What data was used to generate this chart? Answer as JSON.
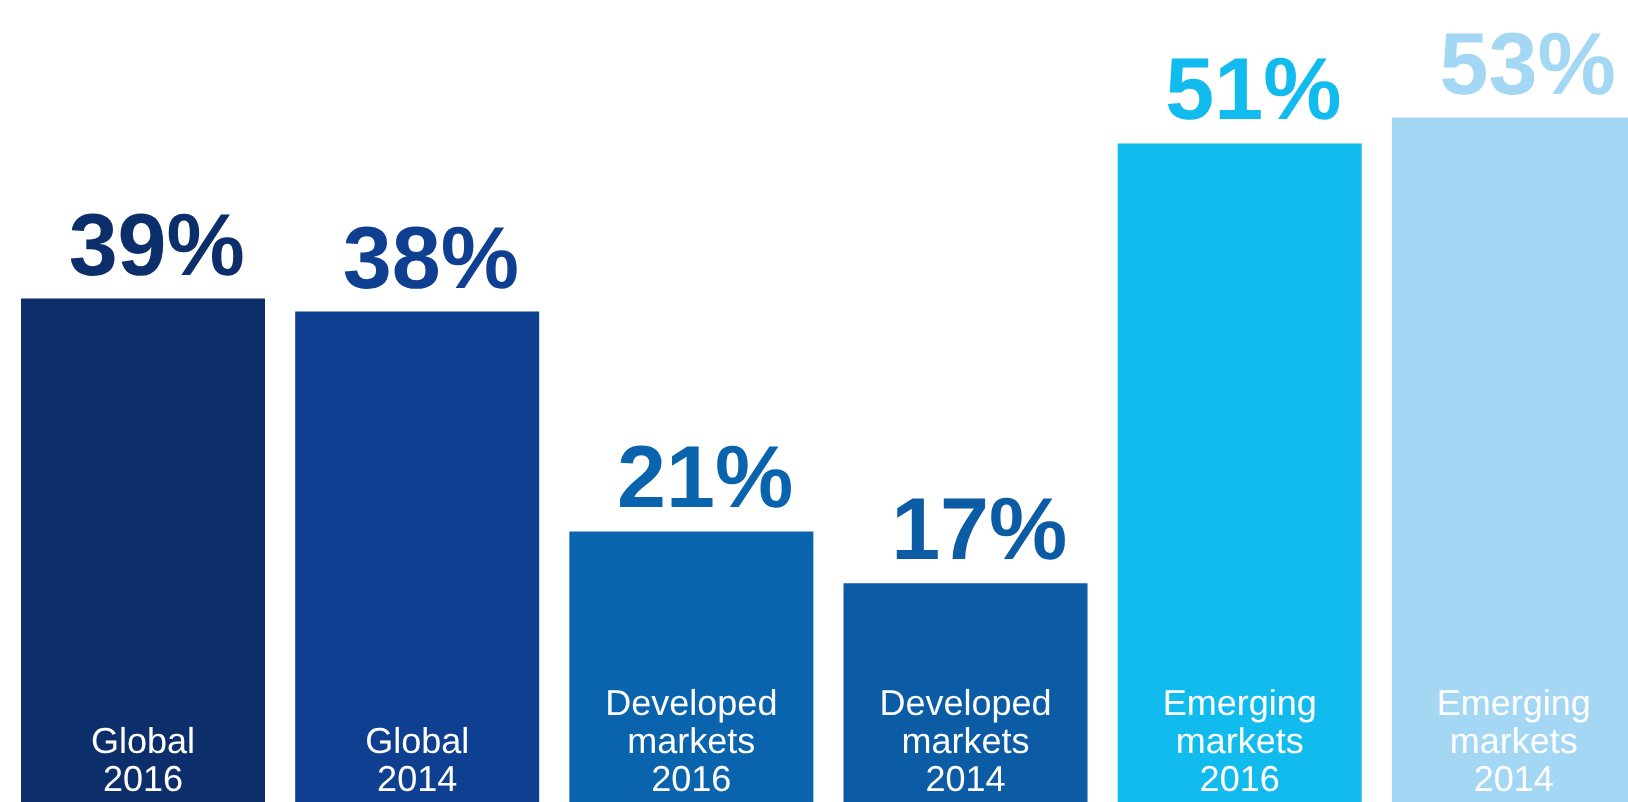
{
  "chart_data": {
    "type": "bar",
    "categories": [
      "Global\n2016",
      "Global\n2014",
      "Developed\nmarkets\n2016",
      "Developed\nmarkets\n2014",
      "Emerging\nmarkets\n2016",
      "Emerging\nmarkets\n2014"
    ],
    "values": [
      39,
      38,
      21,
      17,
      51,
      53
    ],
    "colors": [
      "#0c2f6b",
      "#0f3f91",
      "#0a64ad",
      "#0b5ba5",
      "#12bbee",
      "#a3d7f4"
    ],
    "value_labels": [
      "39%",
      "38%",
      "21%",
      "17%",
      "51%",
      "53%"
    ],
    "grid": false
  }
}
